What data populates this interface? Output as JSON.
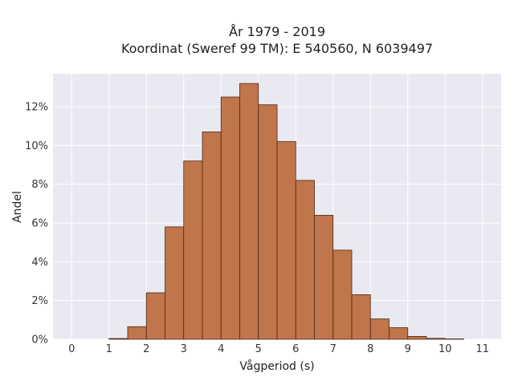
{
  "chart_data": {
    "type": "bar",
    "title": [
      "År 1979 - 2019",
      "Koordinat (Sweref 99 TM): E 540560, N 6039497"
    ],
    "xlabel": "Vågperiod (s)",
    "ylabel": "Andel",
    "xlim": [
      -0.5,
      11.5
    ],
    "ylim": [
      0,
      0.137
    ],
    "grid": true,
    "x_ticks": [
      0,
      1,
      2,
      3,
      4,
      5,
      6,
      7,
      8,
      9,
      10,
      11
    ],
    "y_ticks": [
      0,
      0.02,
      0.04,
      0.06,
      0.08,
      0.1,
      0.12
    ],
    "y_tick_labels": [
      "0%",
      "2%",
      "4%",
      "6%",
      "8%",
      "10%",
      "12%"
    ],
    "bin_width": 0.5,
    "bins": [
      {
        "x0": 1.0,
        "value": 0.0004
      },
      {
        "x0": 1.5,
        "value": 0.0065
      },
      {
        "x0": 2.0,
        "value": 0.024
      },
      {
        "x0": 2.5,
        "value": 0.058
      },
      {
        "x0": 3.0,
        "value": 0.092
      },
      {
        "x0": 3.5,
        "value": 0.107
      },
      {
        "x0": 4.0,
        "value": 0.125
      },
      {
        "x0": 4.5,
        "value": 0.132
      },
      {
        "x0": 5.0,
        "value": 0.121
      },
      {
        "x0": 5.5,
        "value": 0.102
      },
      {
        "x0": 6.0,
        "value": 0.082
      },
      {
        "x0": 6.5,
        "value": 0.064
      },
      {
        "x0": 7.0,
        "value": 0.046
      },
      {
        "x0": 7.5,
        "value": 0.023
      },
      {
        "x0": 8.0,
        "value": 0.0105
      },
      {
        "x0": 8.5,
        "value": 0.006
      },
      {
        "x0": 9.0,
        "value": 0.0015
      },
      {
        "x0": 9.5,
        "value": 0.0005
      },
      {
        "x0": 10.0,
        "value": 0.0002
      }
    ],
    "colors": {
      "bar_fill": "#c0754a",
      "bar_edge": "#4a2a18",
      "plot_background": "#e9e9f1",
      "grid": "#ffffff"
    }
  }
}
